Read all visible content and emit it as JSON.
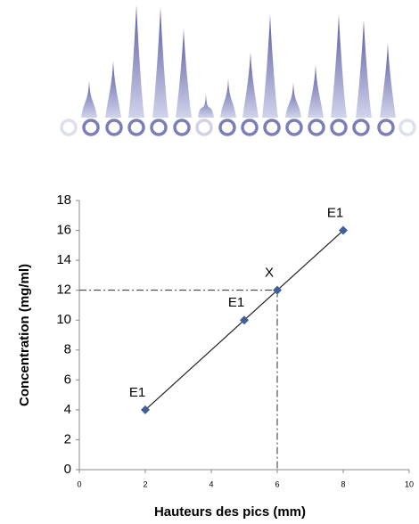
{
  "chart_data": {
    "type": "line",
    "x_label": "Hauteurs des pics (mm)",
    "y_label": "Concentration (mg/ml)",
    "x": [
      2,
      5,
      6,
      8
    ],
    "values": [
      4,
      10,
      12,
      16
    ],
    "point_labels": [
      "E1",
      "E1",
      "X",
      "E1"
    ],
    "marker_color": "#3f5f9a",
    "line_color": "#222222",
    "xlim": [
      0,
      10
    ],
    "xticks": [
      0,
      2,
      4,
      6,
      8,
      10
    ],
    "ylim": [
      0,
      18
    ],
    "yticks": [
      0,
      2,
      4,
      6,
      8,
      10,
      12,
      14,
      16,
      18
    ],
    "grid": false
  }
}
